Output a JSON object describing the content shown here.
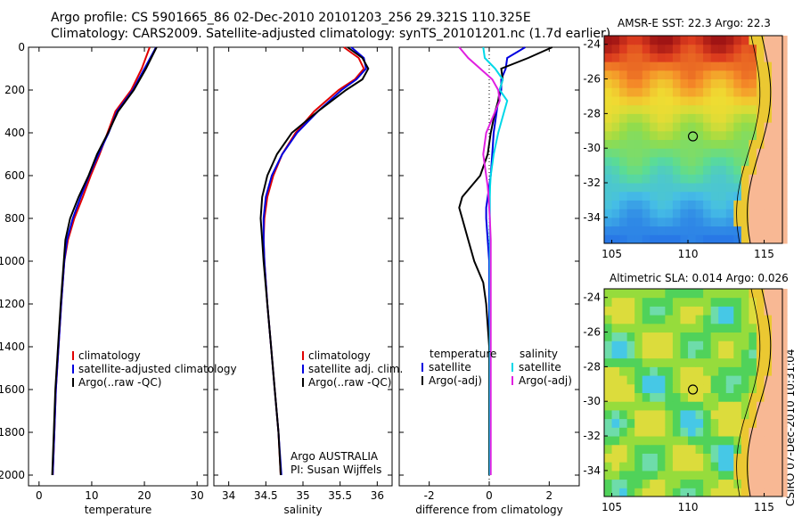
{
  "header": {
    "title_line1": "Argo profile: CS 5901665_86 02-Dec-2010 20101203_256 29.321S 110.325E",
    "title_line2": "Climatology: CARS2009. Satellite-adjusted climatology: synTS_20101201.nc (1.7d earlier)"
  },
  "chart_data": [
    {
      "type": "line",
      "xlabel": "temperature",
      "xlim": [
        -2,
        32
      ],
      "xticks": [
        "0",
        "10",
        "20",
        "30"
      ],
      "ylim": [
        0,
        2050
      ],
      "yticks": [
        "0",
        "200",
        "400",
        "600",
        "800",
        "1000",
        "1200",
        "1400",
        "1600",
        "1800",
        "2000"
      ],
      "depth": [
        0,
        100,
        200,
        300,
        400,
        500,
        600,
        700,
        800,
        900,
        1000,
        1200,
        1400,
        1600,
        1800,
        2000
      ],
      "series": [
        {
          "name": "climatology",
          "color": "#e00000",
          "values": [
            21.0,
            19.5,
            17.5,
            14.5,
            13.0,
            11.5,
            9.8,
            8.3,
            6.7,
            5.5,
            4.8,
            4.2,
            3.7,
            3.2,
            2.9,
            2.6
          ]
        },
        {
          "name": "satellite-adjusted climatology",
          "color": "#0000e0",
          "values": [
            22.2,
            20.0,
            17.8,
            14.8,
            13.2,
            11.3,
            9.5,
            7.9,
            6.4,
            5.3,
            4.8,
            4.2,
            3.7,
            3.2,
            2.9,
            2.6
          ]
        },
        {
          "name": "Argo(..raw -QC)",
          "color": "#000000",
          "values": [
            22.3,
            20.3,
            18.0,
            15.0,
            13.1,
            11.0,
            9.4,
            7.5,
            5.9,
            5.0,
            4.7,
            4.1,
            3.6,
            3.1,
            2.8,
            2.5
          ]
        }
      ],
      "legend": "center-left"
    },
    {
      "type": "line",
      "xlabel": "salinity",
      "xlim": [
        33.8,
        36.2
      ],
      "xticks": [
        "34",
        "34.5",
        "35",
        "35.5",
        "36"
      ],
      "ylim": [
        0,
        2050
      ],
      "depth": [
        0,
        50,
        100,
        150,
        200,
        300,
        400,
        500,
        600,
        700,
        800,
        900,
        1000,
        1200,
        1400,
        1600,
        1800,
        2000
      ],
      "series": [
        {
          "name": "climatology",
          "color": "#e00000",
          "values": [
            35.55,
            35.75,
            35.82,
            35.7,
            35.48,
            35.15,
            34.9,
            34.72,
            34.6,
            34.52,
            34.48,
            34.47,
            34.48,
            34.52,
            34.57,
            34.62,
            34.67,
            34.7
          ]
        },
        {
          "name": "satellite adj. clim.",
          "color": "#0000e0",
          "values": [
            35.65,
            35.82,
            35.85,
            35.72,
            35.52,
            35.2,
            34.92,
            34.72,
            34.58,
            34.5,
            34.47,
            34.47,
            34.48,
            34.52,
            34.57,
            34.62,
            34.67,
            34.71
          ]
        },
        {
          "name": "Argo(..raw -QC)",
          "color": "#000000",
          "values": [
            35.6,
            35.8,
            35.88,
            35.8,
            35.58,
            35.2,
            34.85,
            34.65,
            34.52,
            34.45,
            34.43,
            34.45,
            34.47,
            34.52,
            34.57,
            34.62,
            34.67,
            34.7
          ]
        }
      ],
      "legend": "center-left",
      "annotation_line1": "Argo AUSTRALIA",
      "annotation_line2": "PI: Susan Wijffels"
    },
    {
      "type": "line",
      "xlabel": "difference from climatology",
      "xlim": [
        -3,
        3
      ],
      "xticks": [
        "-2",
        "0",
        "2"
      ],
      "ylim": [
        0,
        2050
      ],
      "depth": [
        0,
        50,
        100,
        150,
        200,
        250,
        300,
        400,
        500,
        600,
        650,
        700,
        750,
        800,
        900,
        1000,
        1100,
        1200,
        1400,
        1600,
        1800,
        2000
      ],
      "series": [
        {
          "name": "satellite (temperature)",
          "color": "#0000e0",
          "values": [
            1.2,
            0.6,
            0.55,
            0.4,
            0.4,
            0.3,
            0.25,
            0.15,
            0.1,
            0.05,
            0.0,
            -0.05,
            -0.1,
            -0.1,
            -0.05,
            0.0,
            0.0,
            0.0,
            0.0,
            0.0,
            0.0,
            0.0
          ]
        },
        {
          "name": "Argo(-adj) (temperature)",
          "color": "#000000",
          "values": [
            2.1,
            1.3,
            0.4,
            0.45,
            0.35,
            0.3,
            0.2,
            0.05,
            -0.05,
            -0.3,
            -0.6,
            -0.9,
            -1.0,
            -0.9,
            -0.7,
            -0.5,
            -0.2,
            -0.1,
            0.0,
            0.0,
            0.0,
            0.0
          ]
        },
        {
          "name": "satellite (salinity)",
          "color": "#00d8e8",
          "values": [
            -0.2,
            -0.15,
            0.2,
            0.45,
            0.35,
            0.6,
            0.5,
            0.3,
            0.15,
            0.05,
            0.03,
            0.02,
            0.02,
            0.02,
            0.02,
            0.02,
            0.02,
            0.02,
            0.02,
            0.02,
            0.02,
            0.02
          ]
        },
        {
          "name": "Argo(-adj) (salinity)",
          "color": "#e020e0",
          "values": [
            -1.0,
            -0.7,
            -0.3,
            0.1,
            0.3,
            0.35,
            0.2,
            -0.1,
            -0.2,
            -0.1,
            -0.05,
            -0.02,
            0.0,
            0.02,
            0.05,
            0.05,
            0.05,
            0.05,
            0.05,
            0.05,
            0.05,
            0.05
          ]
        }
      ],
      "legend_left_header": "temperature",
      "legend_right_header": "salinity",
      "legend_items": [
        "satellite",
        "Argo(-adj)",
        "satellite",
        "Argo(-adj)"
      ]
    },
    {
      "type": "heatmap",
      "title": "AMSR-E SST: 22.3 Argo: 22.3",
      "xlim": [
        104.5,
        116.2
      ],
      "ylim": [
        -35.5,
        -23.5
      ],
      "xticks": [
        "105",
        "110",
        "115"
      ],
      "yticks": [
        "-24",
        "-26",
        "-28",
        "-30",
        "-32",
        "-34"
      ],
      "marker": [
        110.325,
        -29.321
      ]
    },
    {
      "type": "heatmap",
      "title": "Altimetric SLA: 0.014 Argo: 0.026",
      "xlim": [
        104.5,
        116.2
      ],
      "ylim": [
        -35.5,
        -23.5
      ],
      "xticks": [
        "105",
        "110",
        "115"
      ],
      "yticks": [
        "-24",
        "-26",
        "-28",
        "-30",
        "-32",
        "-34"
      ],
      "marker": [
        110.325,
        -29.321
      ]
    }
  ],
  "footer": "CSIRO 07-Dec-2010 10:31:04",
  "colors": {
    "land": "#f8b894"
  }
}
